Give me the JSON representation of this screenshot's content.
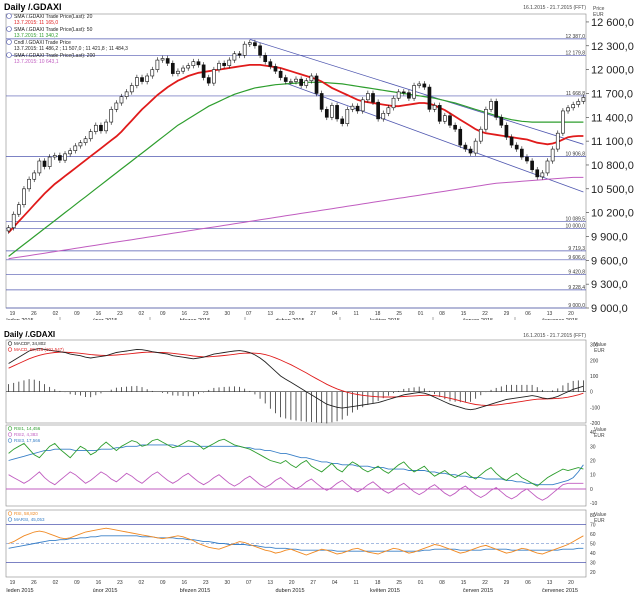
{
  "main_panel": {
    "title": "Daily /.GDAXI",
    "date_range": "16.1.2015 - 21.7.2015 (FFT)",
    "unit_label": "Price\nEUR",
    "legend": [
      {
        "icon": "ma-icon",
        "label": "SMA /.GDAXI Trade Price(Last): 20",
        "value": "13.7.2015: 11 165,0",
        "color": "#e01b1b"
      },
      {
        "icon": "ma-icon",
        "label": "SMA /.GDAXI Trade Price(Last): 50",
        "value": "13.7.2015: 11 340,2",
        "color": "#2e9e2e"
      },
      {
        "icon": "candle-icon",
        "label": "Cndl /.GDAXI Trade Price",
        "value": "13.7.2015: 11 486,2 ; 11 507,0 ; 11 421,8 ; 11 484,3",
        "color": "#222222"
      },
      {
        "icon": "ma-icon",
        "label": "SMA /.GDAXI Trade Price(Last): 200",
        "value": "13.7.2015: 10 643,1",
        "color": "#c05cc0"
      }
    ],
    "y_ticks": [
      "12 600,0",
      "12 300,0",
      "12 000,0",
      "11 700,0",
      "11 400,0",
      "11 100,0",
      "10 800,0",
      "10 500,0",
      "10 200,0",
      "9 900,0",
      "9 600,0",
      "9 300,0",
      "9 000,0"
    ],
    "level_labels": [
      "12 387,0",
      "12 179,8",
      "11 668,8",
      "10 906,8",
      "10 089,5",
      "10 000,0",
      "9 719,3",
      "9 606,6",
      "9 420,8",
      "9 228,4",
      "9 000,0"
    ],
    "x_day_ticks": [
      "19",
      "26",
      "02",
      "09",
      "16",
      "23",
      "02",
      "09",
      "16",
      "23",
      "30",
      "07",
      "13",
      "20",
      "27",
      "04",
      "11",
      "18",
      "25",
      "01",
      "08",
      "15",
      "22",
      "29",
      "06",
      "13",
      "20"
    ],
    "x_month_ticks": [
      "leden 2015",
      "únor 2015",
      "březen 2015",
      "duben 2015",
      "květen 2015",
      "červen 2015",
      "červenec 2015"
    ]
  },
  "macd_panel": {
    "title": "Daily /.GDAXI",
    "date_range": "16.1.2015 - 21.7.2015 (FFT)",
    "unit_label": "Value\nEUR",
    "legend": [
      {
        "label": "MACDF, 34,802",
        "color": "#222222"
      },
      {
        "label": "MACD, 69,118 (101,547)",
        "color": "#e01b1b"
      }
    ],
    "y_ticks": [
      "300",
      "200",
      "100",
      "0",
      "-100",
      "-200"
    ]
  },
  "rsi_panel": {
    "unit_label": "Value\nEUR",
    "legend": [
      {
        "label": "RSI1, 14,456",
        "color": "#2e9e2e"
      },
      {
        "label": "RSI2, 4,383",
        "color": "#c05cc0"
      },
      {
        "label": "RSI3, 17,566",
        "color": "#3a80c8"
      }
    ],
    "y_ticks": [
      "40",
      "30",
      "20",
      "10",
      "0",
      "-10"
    ]
  },
  "stoch_panel": {
    "unit_label": "Value\nEUR",
    "legend": [
      {
        "label": "RSI, 58,820",
        "color": "#f08a24"
      },
      {
        "label": "MARSI, 45,053",
        "color": "#3a80c8"
      }
    ],
    "y_ticks": [
      "80",
      "70",
      "60",
      "50",
      "40",
      "30",
      "20"
    ]
  },
  "x_day_ticks_bottom": [
    "19",
    "26",
    "02",
    "09",
    "16",
    "23",
    "02",
    "09",
    "16",
    "23",
    "30",
    "07",
    "13",
    "20",
    "27",
    "04",
    "11",
    "18",
    "25",
    "01",
    "08",
    "15",
    "22",
    "29",
    "06",
    "13",
    "20"
  ],
  "x_month_ticks_bottom": [
    "leden 2015",
    "únor 2015",
    "březen 2015",
    "duben 2015",
    "květen 2015",
    "červen 2015",
    "červenec 2015"
  ],
  "chart_data": {
    "type": "line",
    "candles_close": [
      10010,
      10180,
      10300,
      10500,
      10620,
      10700,
      10850,
      10780,
      10900,
      10920,
      10860,
      10940,
      10980,
      11040,
      11080,
      11130,
      11220,
      11300,
      11230,
      11340,
      11500,
      11580,
      11660,
      11720,
      11800,
      11900,
      11850,
      11920,
      12000,
      12120,
      12140,
      12080,
      11950,
      11980,
      12020,
      12050,
      12100,
      12060,
      11900,
      11830,
      12000,
      12080,
      12050,
      12120,
      12200,
      12180,
      12320,
      12340,
      12300,
      12180,
      12100,
      12040,
      11980,
      11900,
      11850,
      11850,
      11880,
      11800,
      11860,
      11920,
      11700,
      11500,
      11400,
      11550,
      11380,
      11320,
      11500,
      11540,
      11480,
      11620,
      11700,
      11590,
      11380,
      11450,
      11520,
      11640,
      11720,
      11710,
      11640,
      11800,
      11820,
      11780,
      11500,
      11550,
      11350,
      11420,
      11300,
      11250,
      11050,
      11000,
      10950,
      11100,
      11250,
      11500,
      11600,
      11400,
      11300,
      11150,
      11050,
      11000,
      10900,
      10850,
      10740,
      10650,
      10700,
      10850,
      11000,
      11200,
      11480,
      11520,
      11560,
      11600,
      11650
    ],
    "sma20": [
      9950,
      10020,
      10090,
      10160,
      10230,
      10300,
      10370,
      10440,
      10500,
      10560,
      10610,
      10660,
      10710,
      10760,
      10810,
      10860,
      10910,
      10960,
      11010,
      11060,
      11110,
      11160,
      11220,
      11290,
      11360,
      11430,
      11500,
      11560,
      11620,
      11680,
      11730,
      11780,
      11820,
      11860,
      11890,
      11920,
      11940,
      11960,
      11970,
      11980,
      11990,
      12000,
      12010,
      12020,
      12030,
      12040,
      12050,
      12060,
      12060,
      12060,
      12050,
      12040,
      12030,
      12020,
      12000,
      11980,
      11960,
      11940,
      11920,
      11900,
      11880,
      11850,
      11810,
      11770,
      11740,
      11710,
      11680,
      11650,
      11620,
      11600,
      11590,
      11580,
      11570,
      11560,
      11550,
      11540,
      11540,
      11550,
      11560,
      11570,
      11580,
      11580,
      11570,
      11550,
      11520,
      11490,
      11450,
      11410,
      11370,
      11330,
      11290,
      11250,
      11220,
      11200,
      11190,
      11180,
      11170,
      11160,
      11150,
      11140,
      11130,
      11120,
      11100,
      11080,
      11070,
      11060,
      11070,
      11090,
      11120,
      11150,
      11160,
      11165,
      11165
    ],
    "sma50": [
      9650,
      9700,
      9750,
      9800,
      9850,
      9900,
      9950,
      10000,
      10050,
      10100,
      10150,
      10200,
      10250,
      10300,
      10350,
      10400,
      10450,
      10500,
      10550,
      10600,
      10650,
      10700,
      10750,
      10800,
      10850,
      10900,
      10950,
      11000,
      11050,
      11100,
      11150,
      11200,
      11250,
      11300,
      11340,
      11380,
      11420,
      11460,
      11500,
      11540,
      11570,
      11600,
      11630,
      11660,
      11690,
      11710,
      11730,
      11750,
      11770,
      11780,
      11790,
      11800,
      11810,
      11815,
      11820,
      11825,
      11830,
      11835,
      11840,
      11840,
      11840,
      11840,
      11835,
      11830,
      11825,
      11820,
      11810,
      11800,
      11790,
      11780,
      11770,
      11760,
      11750,
      11740,
      11730,
      11720,
      11710,
      11700,
      11690,
      11680,
      11670,
      11660,
      11650,
      11640,
      11625,
      11610,
      11595,
      11580,
      11560,
      11540,
      11520,
      11500,
      11480,
      11460,
      11440,
      11420,
      11400,
      11385,
      11370,
      11360,
      11350,
      11345,
      11340,
      11340,
      11340,
      11340,
      11340,
      11340,
      11340,
      11340,
      11340,
      11340,
      11340
    ],
    "sma200": [
      9620,
      9630,
      9640,
      9650,
      9660,
      9670,
      9680,
      9690,
      9700,
      9710,
      9720,
      9730,
      9740,
      9750,
      9760,
      9770,
      9780,
      9790,
      9800,
      9810,
      9820,
      9830,
      9840,
      9850,
      9860,
      9870,
      9880,
      9890,
      9900,
      9910,
      9920,
      9930,
      9940,
      9950,
      9960,
      9970,
      9980,
      9990,
      10000,
      10010,
      10020,
      10030,
      10040,
      10050,
      10060,
      10070,
      10080,
      10090,
      10100,
      10110,
      10120,
      10130,
      10140,
      10150,
      10160,
      10170,
      10180,
      10190,
      10200,
      10210,
      10220,
      10230,
      10240,
      10250,
      10260,
      10270,
      10280,
      10290,
      10300,
      10310,
      10320,
      10330,
      10340,
      10350,
      10360,
      10370,
      10380,
      10390,
      10400,
      10410,
      10420,
      10430,
      10440,
      10450,
      10460,
      10470,
      10480,
      10490,
      10500,
      10510,
      10520,
      10530,
      10540,
      10550,
      10560,
      10570,
      10575,
      10580,
      10585,
      10590,
      10595,
      10600,
      10605,
      10610,
      10615,
      10620,
      10625,
      10630,
      10635,
      10640,
      10643,
      10643,
      10643
    ],
    "macd": [
      180,
      200,
      220,
      240,
      260,
      270,
      275,
      270,
      265,
      260,
      255,
      250,
      240,
      235,
      230,
      220,
      215,
      220,
      225,
      230,
      240,
      250,
      255,
      260,
      265,
      270,
      268,
      262,
      255,
      250,
      245,
      240,
      230,
      225,
      220,
      215,
      210,
      215,
      220,
      230,
      240,
      245,
      250,
      255,
      260,
      262,
      258,
      250,
      235,
      215,
      190,
      160,
      130,
      100,
      80,
      60,
      40,
      20,
      0,
      -20,
      -40,
      -60,
      -80,
      -90,
      -100,
      -105,
      -100,
      -95,
      -90,
      -85,
      -80,
      -75,
      -70,
      -60,
      -50,
      -40,
      -30,
      -20,
      -15,
      -10,
      -5,
      -10,
      -20,
      -35,
      -50,
      -65,
      -80,
      -90,
      -100,
      -110,
      -115,
      -110,
      -100,
      -90,
      -80,
      -70,
      -60,
      -50,
      -45,
      -40,
      -35,
      -30,
      -25,
      -30,
      -40,
      -45,
      -40,
      -30,
      -15,
      0,
      15,
      25,
      35
    ],
    "macd_signal": [
      150,
      165,
      180,
      195,
      210,
      222,
      232,
      240,
      246,
      250,
      252,
      252,
      250,
      248,
      245,
      241,
      237,
      234,
      232,
      231,
      232,
      234,
      237,
      240,
      243,
      247,
      250,
      252,
      252,
      251,
      250,
      248,
      245,
      241,
      237,
      233,
      228,
      225,
      223,
      223,
      225,
      228,
      231,
      235,
      239,
      243,
      246,
      247,
      246,
      243,
      237,
      228,
      216,
      202,
      187,
      172,
      155,
      138,
      120,
      101,
      83,
      65,
      47,
      32,
      18,
      6,
      -4,
      -12,
      -18,
      -23,
      -27,
      -30,
      -33,
      -34,
      -34,
      -34,
      -33,
      -31,
      -29,
      -27,
      -25,
      -23,
      -23,
      -25,
      -29,
      -35,
      -42,
      -50,
      -58,
      -67,
      -75,
      -82,
      -86,
      -88,
      -87,
      -85,
      -81,
      -77,
      -72,
      -67,
      -62,
      -57,
      -52,
      -48,
      -47,
      -46,
      -45,
      -43,
      -40,
      -35,
      -28,
      -20,
      -10
    ],
    "rsi1": [
      25,
      28,
      30,
      32,
      28,
      24,
      22,
      26,
      30,
      32,
      28,
      25,
      22,
      26,
      30,
      28,
      24,
      26,
      30,
      33,
      30,
      27,
      30,
      32,
      34,
      33,
      30,
      31,
      34,
      35,
      33,
      31,
      29,
      30,
      32,
      34,
      33,
      31,
      28,
      30,
      32,
      34,
      35,
      33,
      31,
      30,
      29,
      28,
      26,
      24,
      22,
      20,
      19,
      18,
      20,
      17,
      15,
      18,
      20,
      16,
      14,
      12,
      15,
      18,
      14,
      12,
      16,
      19,
      17,
      14,
      12,
      14,
      16,
      13,
      11,
      14,
      17,
      19,
      15,
      12,
      14,
      16,
      12,
      9,
      11,
      13,
      10,
      8,
      10,
      12,
      9,
      7,
      10,
      13,
      15,
      11,
      8,
      6,
      9,
      11,
      8,
      6,
      4,
      2,
      5,
      8,
      10,
      12,
      14,
      13,
      14,
      15,
      14
    ],
    "rsi2": [
      10,
      8,
      6,
      4,
      6,
      9,
      12,
      8,
      5,
      3,
      6,
      9,
      12,
      10,
      7,
      4,
      6,
      9,
      12,
      10,
      7,
      5,
      8,
      11,
      9,
      6,
      4,
      7,
      10,
      12,
      9,
      6,
      4,
      6,
      9,
      11,
      8,
      5,
      3,
      5,
      8,
      10,
      7,
      4,
      2,
      4,
      7,
      9,
      6,
      3,
      1,
      3,
      6,
      8,
      5,
      2,
      0,
      2,
      5,
      7,
      4,
      1,
      -1,
      1,
      4,
      6,
      3,
      0,
      -2,
      0,
      3,
      5,
      2,
      -1,
      -3,
      -1,
      2,
      4,
      1,
      -2,
      -4,
      -2,
      1,
      3,
      0,
      -3,
      -5,
      -3,
      0,
      2,
      -1,
      -4,
      -6,
      -4,
      -1,
      1,
      -2,
      -5,
      -7,
      -5,
      -2,
      0,
      -3,
      -6,
      -8,
      -6,
      -3,
      0,
      3,
      4,
      4,
      4,
      4
    ],
    "rsi3": [
      20,
      21,
      22,
      23,
      24,
      25,
      26,
      27,
      27,
      28,
      28,
      28,
      28,
      27,
      27,
      27,
      27,
      27,
      28,
      28,
      28,
      29,
      29,
      30,
      30,
      30,
      31,
      31,
      31,
      31,
      31,
      31,
      31,
      30,
      30,
      30,
      30,
      30,
      30,
      30,
      30,
      30,
      30,
      30,
      30,
      30,
      29,
      29,
      28,
      28,
      27,
      27,
      26,
      25,
      25,
      24,
      23,
      22,
      22,
      21,
      20,
      19,
      19,
      18,
      18,
      17,
      17,
      17,
      16,
      16,
      16,
      15,
      15,
      15,
      14,
      14,
      14,
      14,
      13,
      13,
      13,
      13,
      12,
      12,
      11,
      11,
      10,
      10,
      9,
      9,
      8,
      8,
      8,
      7,
      7,
      7,
      7,
      6,
      6,
      5,
      5,
      4,
      4,
      3,
      3,
      3,
      3,
      4,
      5,
      6,
      8,
      12,
      17
    ],
    "stoch_rsi": [
      50,
      52,
      55,
      58,
      60,
      62,
      63,
      62,
      60,
      58,
      56,
      55,
      56,
      58,
      60,
      62,
      63,
      64,
      65,
      66,
      65,
      64,
      63,
      62,
      61,
      60,
      59,
      58,
      57,
      56,
      55,
      56,
      57,
      58,
      57,
      55,
      53,
      50,
      48,
      46,
      45,
      44,
      46,
      48,
      50,
      52,
      51,
      49,
      47,
      45,
      43,
      42,
      40,
      41,
      43,
      44,
      42,
      40,
      38,
      40,
      42,
      44,
      43,
      41,
      39,
      40,
      42,
      44,
      45,
      43,
      41,
      40,
      39,
      41,
      43,
      45,
      44,
      42,
      40,
      41,
      43,
      45,
      47,
      49,
      48,
      46,
      44,
      42,
      40,
      41,
      43,
      45,
      47,
      48,
      46,
      44,
      42,
      40,
      41,
      43,
      45,
      44,
      42,
      40,
      39,
      41,
      43,
      45,
      47,
      49,
      52,
      55,
      58
    ],
    "stoch_marsi": [
      45,
      46,
      47,
      48,
      49,
      50,
      51,
      52,
      53,
      53,
      54,
      54,
      55,
      55,
      56,
      56,
      57,
      57,
      58,
      58,
      58,
      58,
      58,
      58,
      58,
      58,
      57,
      57,
      57,
      56,
      56,
      56,
      56,
      55,
      55,
      54,
      54,
      53,
      52,
      52,
      51,
      50,
      50,
      49,
      49,
      49,
      49,
      48,
      48,
      47,
      46,
      46,
      45,
      45,
      45,
      44,
      44,
      43,
      43,
      43,
      43,
      43,
      43,
      43,
      42,
      42,
      42,
      42,
      42,
      42,
      42,
      42,
      42,
      42,
      42,
      42,
      42,
      42,
      42,
      42,
      42,
      43,
      43,
      44,
      44,
      44,
      44,
      44,
      43,
      43,
      43,
      43,
      43,
      44,
      44,
      44,
      44,
      44,
      43,
      43,
      43,
      43,
      43,
      43,
      43,
      43,
      43,
      43,
      44,
      44,
      44,
      45,
      45
    ],
    "main_ylim": [
      9000,
      12700
    ],
    "macd_ylim": [
      -200,
      330
    ],
    "rsi_ylim": [
      -12,
      45
    ],
    "stoch_ylim": [
      15,
      85
    ]
  }
}
